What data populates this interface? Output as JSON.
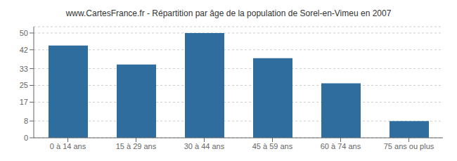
{
  "chart_data": {
    "type": "bar",
    "title": "www.CartesFrance.fr - Répartition par âge de la population de Sorel-en-Vimeu en 2007",
    "categories": [
      "0 à 14 ans",
      "15 à 29 ans",
      "30 à 44 ans",
      "45 à 59 ans",
      "60 à 74 ans",
      "75 ans ou plus"
    ],
    "values": [
      44,
      35,
      50,
      38,
      26,
      8
    ],
    "color": "#2e6d9e",
    "ylim": [
      0,
      53
    ],
    "yticks": [
      0,
      8,
      17,
      25,
      33,
      42,
      50
    ],
    "grid": true
  }
}
